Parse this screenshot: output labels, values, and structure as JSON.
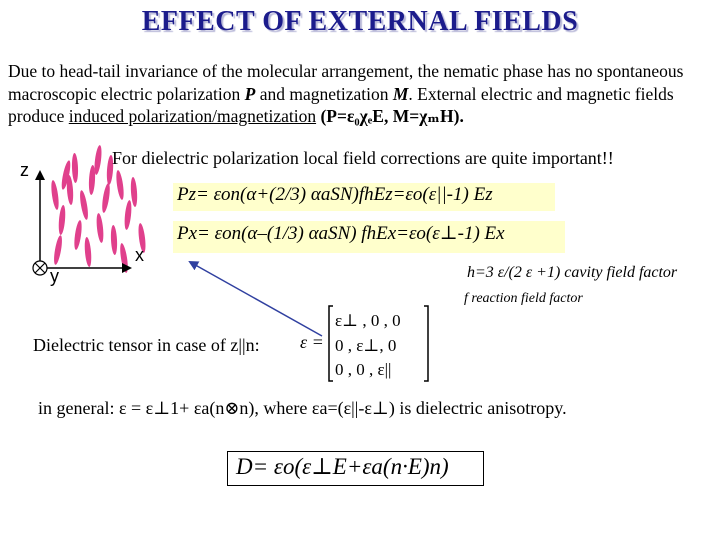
{
  "title": "EFFECT OF EXTERNAL FIELDS",
  "intro": {
    "part1": "Due to head-tail invariance of the molecular arrangement, the nematic phase has no spontaneous macroscopic electric polarization ",
    "P": "P",
    "part2": " and magnetization ",
    "M": "M",
    "part3": ". External electric and magnetic fields produce ",
    "underlined": "induced polarization/magnetization",
    "part4": " (P=ε₀χₑE, M=χₘH)."
  },
  "axes": {
    "z": "z",
    "x": "x",
    "y": "y"
  },
  "local_note": "For dielectric polarization local field corrections are quite important!!",
  "eq_pz": "Pz= εon(α+(2/3) αaSN)fhEz=εo(ε||-1) Ez",
  "eq_px": "Px= εon(α–(1/3) αaSN) fhEx=εo(ε⊥-1) Ex",
  "cavity": "h=3 ε/(2 ε +1) cavity field factor",
  "reaction": "f reaction field factor",
  "tensor_label": "Dielectric tensor in case of z||n:",
  "tensor_eq": "ε =",
  "matrix": {
    "row1": "ε⊥ , 0 , 0",
    "row2": "0 , ε⊥, 0",
    "row3": "0 , 0 , ε||"
  },
  "general": "in general: ε = ε⊥1+ εa(n⊗n), where εa=(ε||-ε⊥) is dielectric anisotropy.",
  "d_equation": "D= εo(ε⊥E+εa(n·E)n)",
  "colors": {
    "title": "#1c1c8c",
    "molecules": "#e0408c",
    "highlight": "#ffffcc",
    "arrow": "#3040a0"
  }
}
